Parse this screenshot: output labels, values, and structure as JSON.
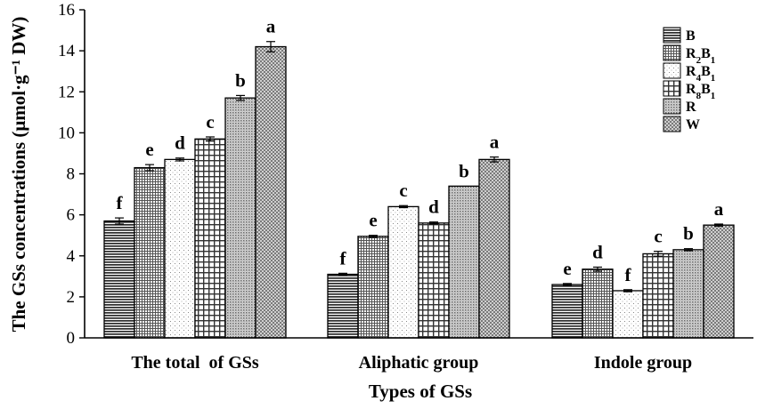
{
  "chart_data": {
    "type": "bar",
    "xlabel": "Types of GSs",
    "ylabel": "The GSs concentrations (μmol·g⁻¹ DW)",
    "ylim": [
      0,
      16
    ],
    "yticks": [
      0,
      2,
      4,
      6,
      8,
      10,
      12,
      14,
      16
    ],
    "grid": false,
    "legend_position": "top-right",
    "categories": [
      "The total  of GSs",
      "Aliphatic group",
      "Indole group"
    ],
    "series": [
      {
        "name": "B",
        "label_parts": [
          [
            "B",
            ""
          ]
        ],
        "pattern": "hlines",
        "values": [
          5.7,
          3.1,
          2.6
        ],
        "errors": [
          0.15,
          0.05,
          0.05
        ],
        "letters": [
          "f",
          "f",
          "e"
        ]
      },
      {
        "name": "R2B1",
        "label_parts": [
          [
            "R",
            ""
          ],
          [
            "2",
            "sub"
          ],
          [
            "B",
            ""
          ],
          [
            "1",
            "sub"
          ]
        ],
        "pattern": "grid-fine",
        "values": [
          8.3,
          4.95,
          3.35
        ],
        "errors": [
          0.15,
          0.05,
          0.1
        ],
        "letters": [
          "e",
          "e",
          "d"
        ]
      },
      {
        "name": "R4B1",
        "label_parts": [
          [
            "R",
            ""
          ],
          [
            "4",
            "sub"
          ],
          [
            "B",
            ""
          ],
          [
            "1",
            "sub"
          ]
        ],
        "pattern": "sparse-dots",
        "values": [
          8.7,
          6.4,
          2.3
        ],
        "errors": [
          0.07,
          0.05,
          0.05
        ],
        "letters": [
          "d",
          "c",
          "f"
        ]
      },
      {
        "name": "R8B1",
        "label_parts": [
          [
            "R",
            ""
          ],
          [
            "8",
            "sub"
          ],
          [
            "B",
            ""
          ],
          [
            "1",
            "sub"
          ]
        ],
        "pattern": "grid-coarse",
        "values": [
          9.7,
          5.6,
          4.1
        ],
        "errors": [
          0.1,
          0.05,
          0.12
        ],
        "letters": [
          "c",
          "d",
          "c"
        ]
      },
      {
        "name": "R",
        "label_parts": [
          [
            "R",
            ""
          ]
        ],
        "pattern": "dense-dots",
        "values": [
          11.7,
          7.4,
          4.3
        ],
        "errors": [
          0.12,
          0.0,
          0.05
        ],
        "letters": [
          "b",
          "b",
          "b"
        ]
      },
      {
        "name": "W",
        "label_parts": [
          [
            "W",
            ""
          ]
        ],
        "pattern": "checker",
        "values": [
          14.2,
          8.7,
          5.5
        ],
        "errors": [
          0.25,
          0.12,
          0.05
        ],
        "letters": [
          "a",
          "a",
          "a"
        ]
      }
    ]
  }
}
